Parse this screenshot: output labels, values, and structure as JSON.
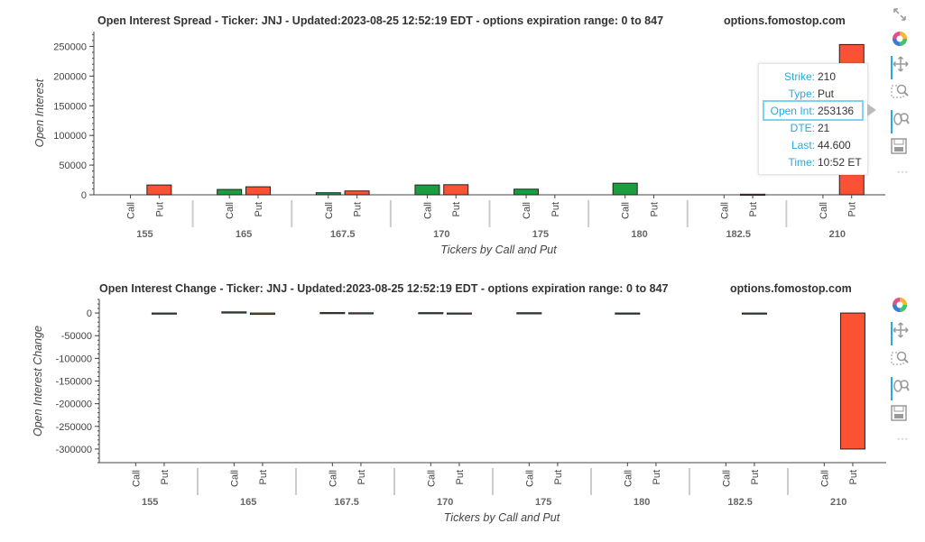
{
  "charts": [
    {
      "id": "top",
      "title": "Open Interest Spread - Ticker: JNJ - Updated:2023-08-25 12:52:19 EDT - options expiration range: 0 to 847",
      "watermark": "options.fomostop.com"
    },
    {
      "id": "bottom",
      "title": "Open Interest Change - Ticker: JNJ - Updated:2023-08-25 12:52:19 EDT - options expiration range: 0 to 847",
      "watermark": "options.fomostop.com"
    }
  ],
  "tooltip": {
    "rows": [
      {
        "key": "Strike:",
        "value": "210"
      },
      {
        "key": "Type:",
        "value": "Put"
      },
      {
        "key": "Open Int:",
        "value": "253136"
      },
      {
        "key": "DTE:",
        "value": "21"
      },
      {
        "key": "Last:",
        "value": "44.600"
      },
      {
        "key": "Time:",
        "value": "10:52 ET"
      }
    ]
  },
  "toolbar": {
    "tools": [
      "bokeh-logo-icon",
      "pan-icon",
      "box-zoom-icon",
      "wheel-zoom-icon",
      "save-icon",
      "more-icon"
    ],
    "more_label": "···",
    "expand_icon": "expand-icon"
  },
  "colors": {
    "call": "#1a9e3e",
    "put": "#fb5233",
    "accent": "#26aae1"
  },
  "chart_data": [
    {
      "type": "bar",
      "title": "Open Interest Spread - Ticker: JNJ - Updated:2023-08-25 12:52:19 EDT - options expiration range: 0 to 847",
      "xlabel": "Tickers by Call and Put",
      "ylabel": "Open Interest",
      "groups": [
        "155",
        "165",
        "167.5",
        "170",
        "175",
        "180",
        "182.5",
        "210"
      ],
      "subcategories": [
        "Call",
        "Put"
      ],
      "series": [
        {
          "name": "Call",
          "values": [
            0,
            9000,
            3500,
            16500,
            9500,
            19500,
            0,
            0
          ]
        },
        {
          "name": "Put",
          "values": [
            16500,
            13500,
            6500,
            17000,
            0,
            0,
            1000,
            253136
          ]
        }
      ],
      "ylim": [
        0,
        275000
      ],
      "yticks": [
        0,
        50000,
        100000,
        150000,
        200000,
        250000
      ],
      "ytick_labels": [
        "0",
        "50000",
        "100000",
        "150000",
        "200000",
        "250000"
      ]
    },
    {
      "type": "bar",
      "title": "Open Interest Change - Ticker: JNJ - Updated:2023-08-25 12:52:19 EDT - options expiration range: 0 to 847",
      "xlabel": "Tickers by Call and Put",
      "ylabel": "Open Interest Change",
      "groups": [
        "155",
        "165",
        "167.5",
        "170",
        "175",
        "180",
        "182.5",
        "210"
      ],
      "subcategories": [
        "Call",
        "Put"
      ],
      "series": [
        {
          "name": "Call",
          "values": [
            0,
            2500,
            1000,
            800,
            600,
            -500,
            0,
            0
          ]
        },
        {
          "name": "Put",
          "values": [
            -300,
            -3000,
            500,
            -200,
            0,
            0,
            -100,
            -300000
          ]
        }
      ],
      "ylim": [
        -330000,
        30000
      ],
      "yticks": [
        0,
        -50000,
        -100000,
        -150000,
        -200000,
        -250000,
        -300000
      ],
      "ytick_labels": [
        "0",
        "-50000",
        "-100000",
        "-150000",
        "-200000",
        "-250000",
        "-300000"
      ]
    }
  ]
}
